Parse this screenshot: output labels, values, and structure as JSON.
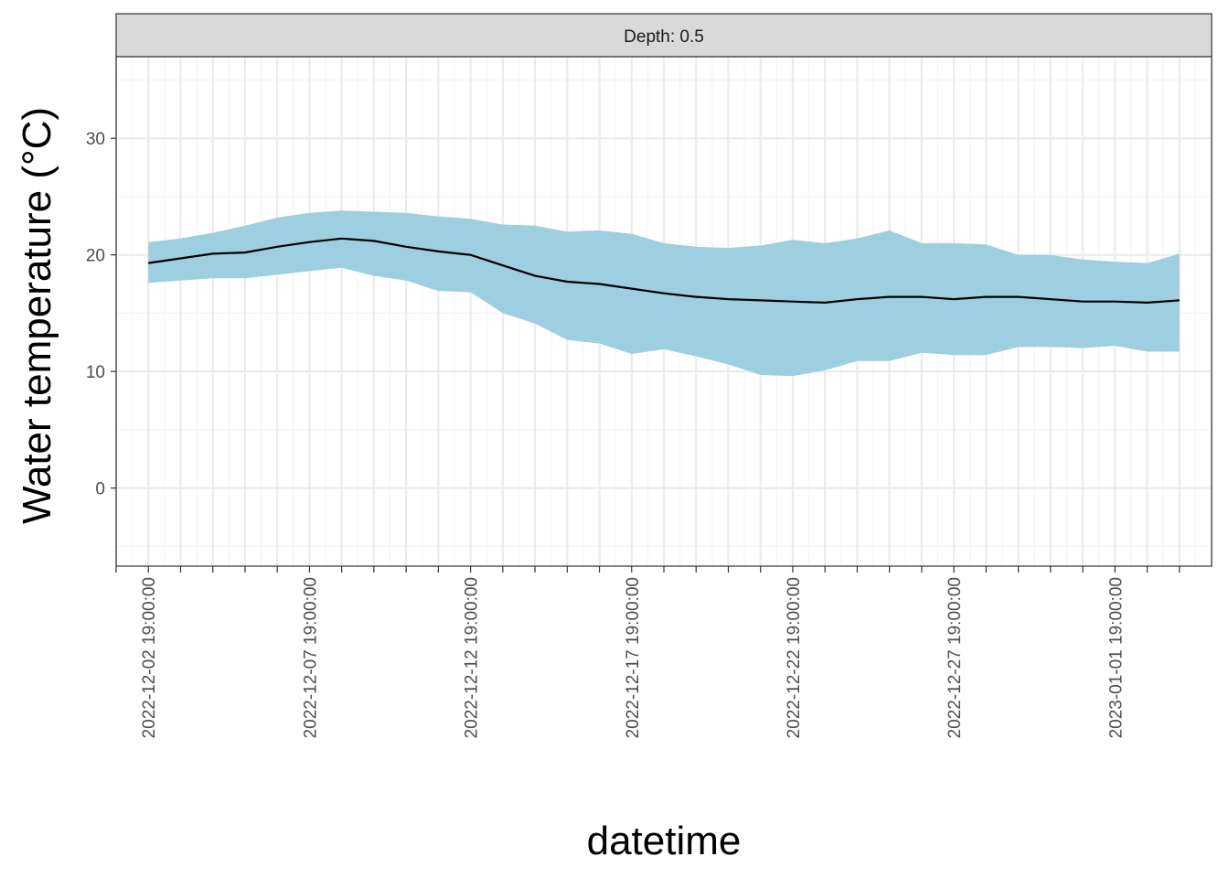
{
  "chart_data": {
    "type": "area",
    "facet_label": "Depth: 0.5",
    "xlabel": "datetime",
    "ylabel": "Water temperature (°C)",
    "x_start": "2022-12-02 19:00:00",
    "x": [
      "2022-12-02 19:00:00",
      "2022-12-03 19:00:00",
      "2022-12-04 19:00:00",
      "2022-12-05 19:00:00",
      "2022-12-06 19:00:00",
      "2022-12-07 19:00:00",
      "2022-12-08 19:00:00",
      "2022-12-09 19:00:00",
      "2022-12-10 19:00:00",
      "2022-12-11 19:00:00",
      "2022-12-12 19:00:00",
      "2022-12-13 19:00:00",
      "2022-12-14 19:00:00",
      "2022-12-15 19:00:00",
      "2022-12-16 19:00:00",
      "2022-12-17 19:00:00",
      "2022-12-18 19:00:00",
      "2022-12-19 19:00:00",
      "2022-12-20 19:00:00",
      "2022-12-21 19:00:00",
      "2022-12-22 19:00:00",
      "2022-12-23 19:00:00",
      "2022-12-24 19:00:00",
      "2022-12-25 19:00:00",
      "2022-12-26 19:00:00",
      "2022-12-27 19:00:00",
      "2022-12-28 19:00:00",
      "2022-12-29 19:00:00",
      "2022-12-30 19:00:00",
      "2022-12-31 19:00:00",
      "2023-01-01 19:00:00",
      "2023-01-02 19:00:00",
      "2023-01-03 19:00:00"
    ],
    "series": [
      {
        "values": [
          19.3,
          19.7,
          20.1,
          20.2,
          20.7,
          21.1,
          21.4,
          21.2,
          20.7,
          20.3,
          20.0,
          19.1,
          18.2,
          17.7,
          17.5,
          17.1,
          16.7,
          16.4,
          16.2,
          16.1,
          16.0,
          15.9,
          16.2,
          16.4,
          16.4,
          16.2,
          16.4,
          16.4,
          16.2,
          16.0,
          16.0,
          15.9,
          16.1
        ]
      },
      {
        "values": [
          17.6,
          17.8,
          18.0,
          18.0,
          18.3,
          18.6,
          18.9,
          18.2,
          17.8,
          16.9,
          16.8,
          15.0,
          14.1,
          12.7,
          12.4,
          11.5,
          11.9,
          11.3,
          10.6,
          9.7,
          9.6,
          10.1,
          10.9,
          10.9,
          11.6,
          11.4,
          11.4,
          12.1,
          12.1,
          12.0,
          12.2,
          11.7,
          11.7
        ]
      },
      {
        "values": [
          21.1,
          21.4,
          21.9,
          22.5,
          23.2,
          23.6,
          23.8,
          23.7,
          23.6,
          23.3,
          23.1,
          22.6,
          22.5,
          22.0,
          22.1,
          21.8,
          21.0,
          20.7,
          20.6,
          20.8,
          21.3,
          21.0,
          21.4,
          22.1,
          21.0,
          21.0,
          20.9,
          20.0,
          20.0,
          19.6,
          19.4,
          19.3,
          20.1
        ]
      }
    ],
    "ylim": [
      -6.7,
      37.0
    ],
    "y_ticks": [
      0,
      10,
      20,
      30
    ],
    "x_tick_labels": [
      "2022-12-02 19:00:00",
      "2022-12-07 19:00:00",
      "2022-12-12 19:00:00",
      "2022-12-17 19:00:00",
      "2022-12-22 19:00:00",
      "2022-12-27 19:00:00",
      "2023-01-01 19:00:00"
    ],
    "x_tick_days": [
      0,
      5,
      10,
      15,
      20,
      25,
      30
    ],
    "xlim_days": [
      -1.0,
      33.0
    ],
    "grid": true,
    "ribbon_color": "#9ECFE0",
    "line_color": "#000000",
    "strip_color": "#D9D9D9"
  }
}
